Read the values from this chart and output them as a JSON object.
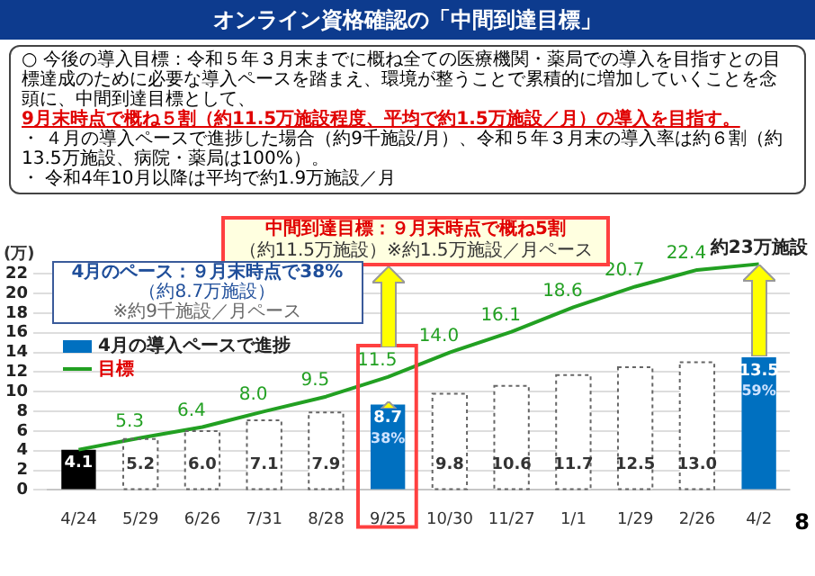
{
  "chart_data": {
    "type": "bar",
    "title": "オンライン資格確認の「中間到達目標」",
    "categories": [
      "4/24",
      "5/29",
      "6/26",
      "7/31",
      "8/28",
      "9/25",
      "10/30",
      "11/27",
      "1/1",
      "1/29",
      "2/26",
      "4/2"
    ],
    "series": [
      {
        "name": "4月の導入ペースで進捗",
        "color": "#0070c0",
        "colors": [
          "#000000",
          "#ffffff",
          "#ffffff",
          "#ffffff",
          "#ffffff",
          "#0070c0",
          "#ffffff",
          "#ffffff",
          "#ffffff",
          "#ffffff",
          "#ffffff",
          "#0070c0"
        ],
        "values": [
          4.1,
          5.2,
          6.0,
          7.1,
          7.9,
          8.7,
          9.8,
          10.6,
          11.7,
          12.5,
          13.0,
          13.5
        ],
        "value_labels": [
          "4.1",
          "5.2",
          "6.0",
          "7.1",
          "7.9",
          "8.7",
          "9.8",
          "10.6",
          "11.7",
          "12.5",
          "13.0",
          "13.5"
        ]
      },
      {
        "name": "目標",
        "type": "line",
        "color": "#22a022",
        "values": [
          4.1,
          5.3,
          6.4,
          8.0,
          9.5,
          11.5,
          14.0,
          16.1,
          18.6,
          20.7,
          22.4,
          23
        ],
        "value_labels": [
          null,
          "5.3",
          "6.4",
          "8.0",
          "9.5",
          "11.5",
          "14.0",
          "16.1",
          "18.6",
          "20.7",
          "22.4",
          null
        ]
      }
    ],
    "ylabel": "(万)",
    "ylim": [
      0,
      28
    ],
    "yticks": [
      0,
      2,
      4,
      6,
      8,
      10,
      12,
      14,
      16,
      18,
      20,
      22
    ],
    "grid": "y",
    "legend": "left",
    "marker": "none",
    "annotations": [
      "○ 今後の導入目標：令和５年３月末までに概ね全ての医療機関・薬局での導入を目指すとの目標達成のために必要な導入ペースを踏まえ、環境が整うことで累積的に増加していくことを念頭に、中間到達目標として、",
      "9月末時点で概ね５割（約11.5万施設程度、平均で約1.5万施設／月）の導入を目指す。",
      "・ ４月の導入ペースで進捗した場合（約9千施設/月）、令和５年３月末の導入率は約６割（約13.5万施設、病院・薬局は100%）。",
      "・ 令和4年10月以降は平均で約1.9万施設／月",
      "中間到達目標：９月末時点で概ね5割",
      "（約11.5万施設）※約1.5万施設／月ペース",
      "4月のペース：９月末時点で38%",
      "（約8.7万施設）",
      "※約9千施設／月ペース",
      "38%",
      "59%",
      {
        "text": "約23万施設",
        "x": "4/2",
        "y": 23
      },
      "8"
    ]
  }
}
